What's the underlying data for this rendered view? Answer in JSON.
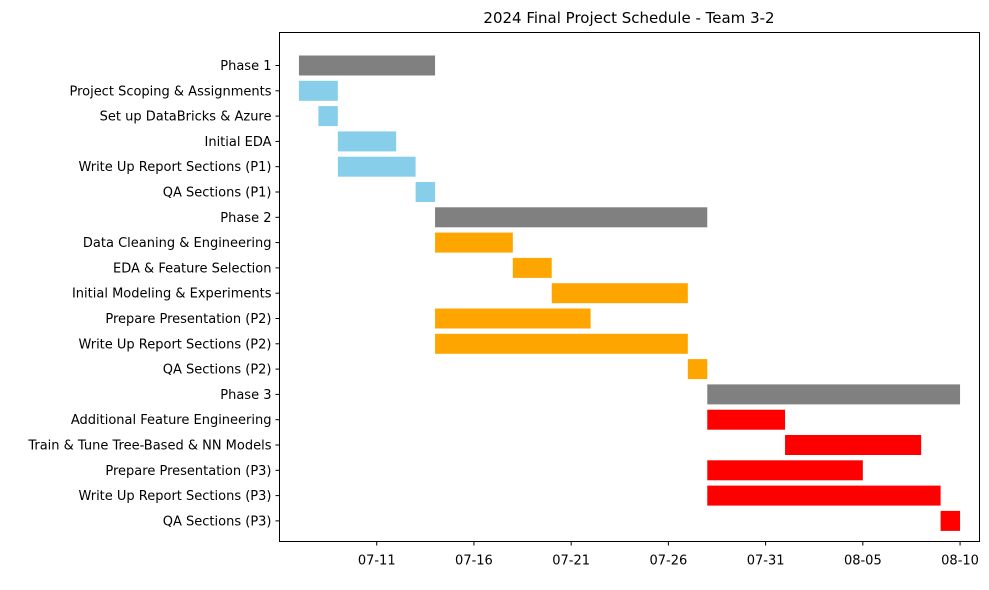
{
  "chart_data": {
    "type": "bar",
    "orientation": "horizontal",
    "title": "2024 Final Project Schedule - Team 3-2",
    "xlabel": "",
    "ylabel": "",
    "x_axis": "date",
    "xlim": [
      "2024-07-06",
      "2024-08-11"
    ],
    "xticks": [
      {
        "date": "2024-07-11",
        "label": "07-11"
      },
      {
        "date": "2024-07-16",
        "label": "07-16"
      },
      {
        "date": "2024-07-21",
        "label": "07-21"
      },
      {
        "date": "2024-07-26",
        "label": "07-26"
      },
      {
        "date": "2024-07-31",
        "label": "07-31"
      },
      {
        "date": "2024-08-05",
        "label": "08-05"
      },
      {
        "date": "2024-08-10",
        "label": "08-10"
      }
    ],
    "grid": false,
    "legend": "none",
    "colors": {
      "phase": "#808080",
      "phase1": "#87CEEB",
      "phase2": "#FFA500",
      "phase3": "#FF0000"
    },
    "tasks": [
      {
        "name": "Phase 1",
        "start": "2024-07-07",
        "end": "2024-07-14",
        "group": "phase"
      },
      {
        "name": "Project Scoping & Assignments",
        "start": "2024-07-07",
        "end": "2024-07-09",
        "group": "phase1"
      },
      {
        "name": "Set up DataBricks & Azure",
        "start": "2024-07-08",
        "end": "2024-07-09",
        "group": "phase1"
      },
      {
        "name": "Initial EDA",
        "start": "2024-07-09",
        "end": "2024-07-12",
        "group": "phase1"
      },
      {
        "name": "Write Up Report Sections (P1)",
        "start": "2024-07-09",
        "end": "2024-07-13",
        "group": "phase1"
      },
      {
        "name": "QA Sections (P1)",
        "start": "2024-07-13",
        "end": "2024-07-14",
        "group": "phase1"
      },
      {
        "name": "Phase 2",
        "start": "2024-07-14",
        "end": "2024-07-28",
        "group": "phase"
      },
      {
        "name": "Data Cleaning & Engineering",
        "start": "2024-07-14",
        "end": "2024-07-18",
        "group": "phase2"
      },
      {
        "name": "EDA & Feature Selection",
        "start": "2024-07-18",
        "end": "2024-07-20",
        "group": "phase2"
      },
      {
        "name": "Initial Modeling & Experiments",
        "start": "2024-07-20",
        "end": "2024-07-27",
        "group": "phase2"
      },
      {
        "name": "Prepare Presentation (P2)",
        "start": "2024-07-14",
        "end": "2024-07-22",
        "group": "phase2"
      },
      {
        "name": "Write Up Report Sections (P2)",
        "start": "2024-07-14",
        "end": "2024-07-27",
        "group": "phase2"
      },
      {
        "name": "QA Sections (P2)",
        "start": "2024-07-27",
        "end": "2024-07-28",
        "group": "phase2"
      },
      {
        "name": "Phase 3",
        "start": "2024-07-28",
        "end": "2024-08-10",
        "group": "phase"
      },
      {
        "name": "Additional Feature Engineering",
        "start": "2024-07-28",
        "end": "2024-08-01",
        "group": "phase3"
      },
      {
        "name": "Train & Tune Tree-Based & NN Models",
        "start": "2024-08-01",
        "end": "2024-08-08",
        "group": "phase3"
      },
      {
        "name": "Prepare Presentation (P3)",
        "start": "2024-07-28",
        "end": "2024-08-05",
        "group": "phase3"
      },
      {
        "name": "Write Up Report Sections (P3)",
        "start": "2024-07-28",
        "end": "2024-08-09",
        "group": "phase3"
      },
      {
        "name": "QA Sections (P3)",
        "start": "2024-08-09",
        "end": "2024-08-10",
        "group": "phase3"
      }
    ]
  }
}
